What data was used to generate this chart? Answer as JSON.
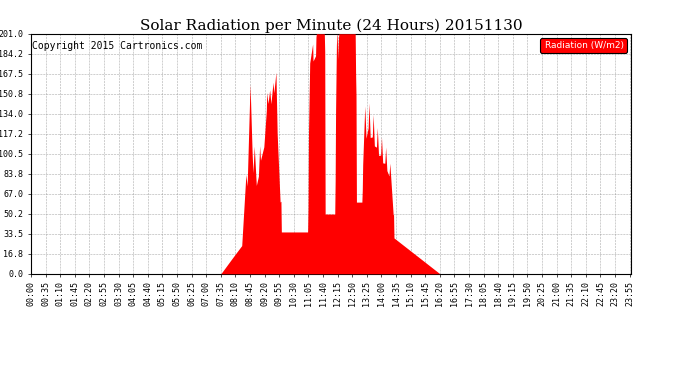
{
  "title": "Solar Radiation per Minute (24 Hours) 20151130",
  "copyright_text": "Copyright 2015 Cartronics.com",
  "legend_label": "Radiation (W/m2)",
  "yticks": [
    0.0,
    16.8,
    33.5,
    50.2,
    67.0,
    83.8,
    100.5,
    117.2,
    134.0,
    150.8,
    167.5,
    184.2,
    201.0
  ],
  "ymax": 201.0,
  "bar_color": "#FF0000",
  "legend_bg": "#FF0000",
  "bg_color": "#FFFFFF",
  "grid_color": "#888888",
  "title_fontsize": 11,
  "copyright_fontsize": 7,
  "tick_fontsize": 6,
  "tick_step": 35
}
